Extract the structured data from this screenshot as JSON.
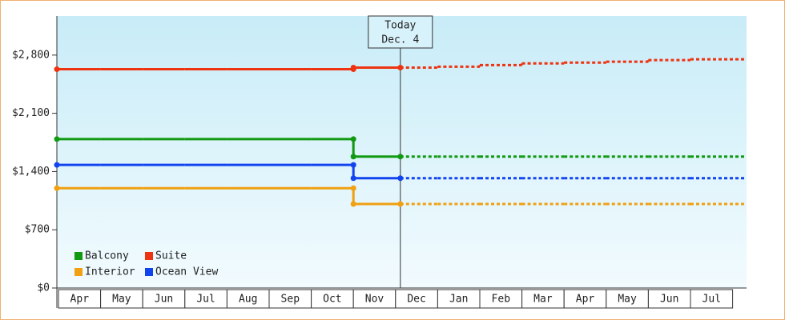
{
  "chart_data": {
    "type": "step-line",
    "categories": [
      "Apr",
      "May",
      "Jun",
      "Jul",
      "Aug",
      "Sep",
      "Oct",
      "Nov",
      "Dec",
      "Jan",
      "Feb",
      "Mar",
      "Apr",
      "May",
      "Jun",
      "Jul"
    ],
    "annotation": [
      "Today",
      "Dec. 4"
    ],
    "ylim": [
      0,
      3270
    ],
    "yticks": [
      {
        "value": 0,
        "label": "$0"
      },
      {
        "value": 700,
        "label": "$700"
      },
      {
        "value": 1400,
        "label": "$1,400"
      },
      {
        "value": 2100,
        "label": "$2,100"
      },
      {
        "value": 2800,
        "label": "$2,800"
      }
    ],
    "series": [
      {
        "name": "Balcony",
        "color": "#119911",
        "values": [
          1790,
          1790,
          1790,
          1790,
          1790,
          1790,
          1790,
          1580,
          null,
          null,
          null,
          null,
          null,
          null,
          null,
          null
        ],
        "forecast": [
          null,
          null,
          null,
          null,
          null,
          null,
          null,
          null,
          1580,
          1580,
          1580,
          1580,
          1580,
          1580,
          1580,
          1580
        ]
      },
      {
        "name": "Suite",
        "color": "#ee3311",
        "values": [
          2630,
          2630,
          2630,
          2630,
          2630,
          2630,
          2630,
          2650,
          null,
          null,
          null,
          null,
          null,
          null,
          null,
          null
        ],
        "forecast": [
          null,
          null,
          null,
          null,
          null,
          null,
          null,
          null,
          2650,
          2660,
          2680,
          2700,
          2710,
          2720,
          2740,
          2750
        ]
      },
      {
        "name": "Interior",
        "color": "#f0a010",
        "values": [
          1200,
          1200,
          1200,
          1200,
          1200,
          1200,
          1200,
          1010,
          null,
          null,
          null,
          null,
          null,
          null,
          null,
          null
        ],
        "forecast": [
          null,
          null,
          null,
          null,
          null,
          null,
          null,
          null,
          1010,
          1010,
          1010,
          1010,
          1010,
          1010,
          1010,
          1010
        ]
      },
      {
        "name": "Ocean View",
        "color": "#1144ee",
        "values": [
          1480,
          1480,
          1480,
          1480,
          1480,
          1480,
          1480,
          1320,
          null,
          null,
          null,
          null,
          null,
          null,
          null,
          null
        ],
        "forecast": [
          null,
          null,
          null,
          null,
          null,
          null,
          null,
          null,
          1320,
          1320,
          1320,
          1320,
          1320,
          1320,
          1320,
          1320
        ]
      }
    ]
  }
}
